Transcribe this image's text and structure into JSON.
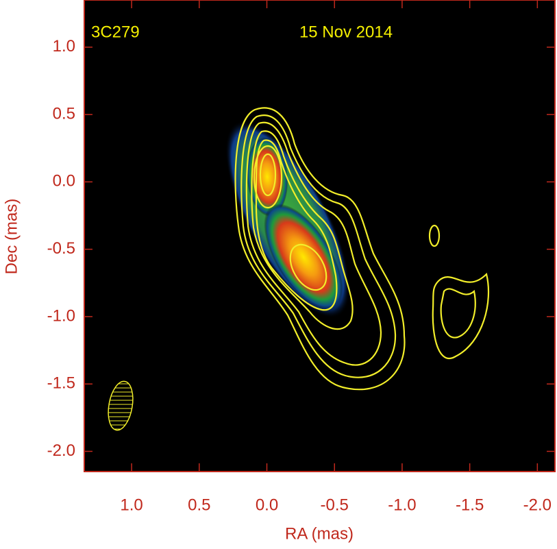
{
  "chart_data": {
    "type": "image",
    "annotations": [
      "3C279",
      "15 Nov 2014"
    ],
    "x_label": "RA (mas)",
    "y_label": "Dec (mas)",
    "xlim": [
      1.35,
      -2.13
    ],
    "ylim": [
      -2.15,
      1.35
    ],
    "xticks": [
      {
        "value": 1.0,
        "label": "1.0"
      },
      0.5,
      {
        "value": 0.0,
        "label": "0.0"
      },
      -0.5,
      {
        "value": -1.0,
        "label": "-1.0"
      },
      -1.5,
      {
        "value": -2.0,
        "label": "-2.0"
      }
    ],
    "yticks": [
      {
        "value": 1.0,
        "label": "1.0"
      },
      0.5,
      {
        "value": 0.0,
        "label": "0.0"
      },
      -0.5,
      {
        "value": -1.0,
        "label": "-1.0"
      },
      -1.5,
      {
        "value": -2.0,
        "label": "-2.0"
      }
    ],
    "axis_color": "#c0281c",
    "annotation_color": "#f5f000"
  }
}
